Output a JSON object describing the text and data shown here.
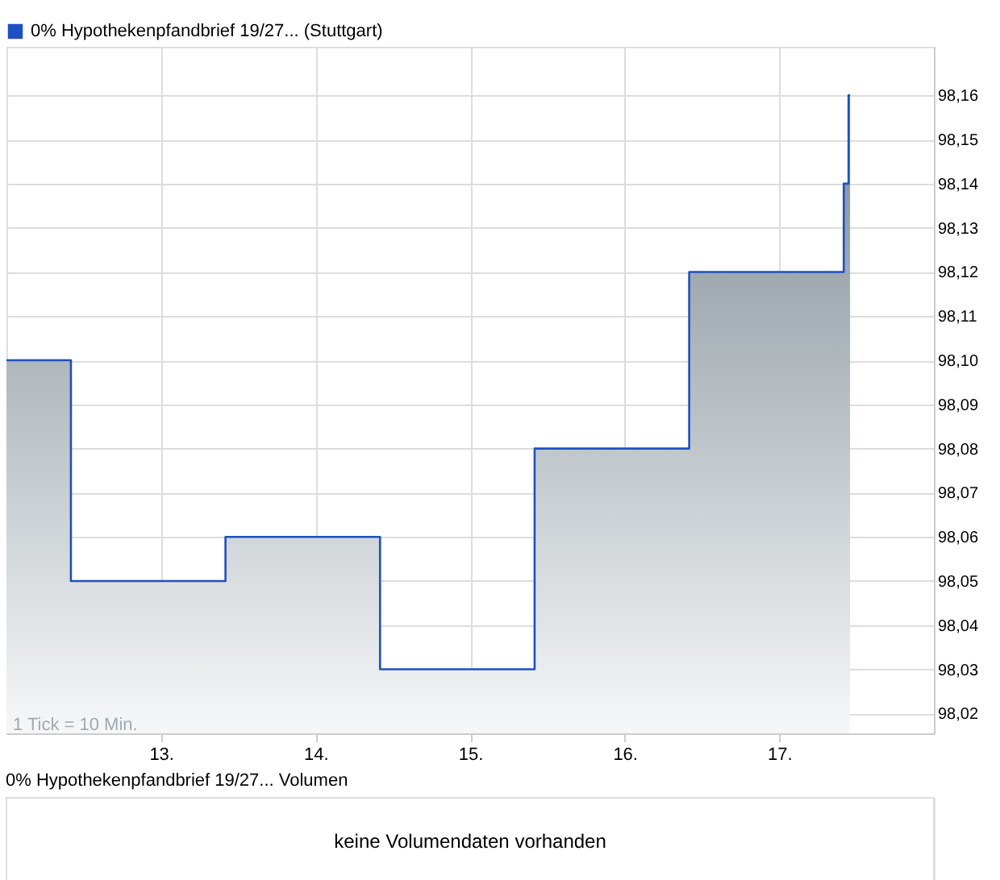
{
  "chart_data": [
    {
      "type": "area",
      "x": [
        12.0,
        12.417,
        12.417,
        13.417,
        13.417,
        14.417,
        14.417,
        15.417,
        15.417,
        16.417,
        16.417,
        17.417,
        17.417,
        17.448,
        17.448,
        17.458
      ],
      "series": [
        {
          "name": "0% Hypothekenpfandbrief 19/27... (Stuttgart)",
          "color": "#1f50c0",
          "values": [
            98.1,
            98.1,
            98.05,
            98.05,
            98.06,
            98.06,
            98.03,
            98.03,
            98.08,
            98.08,
            98.12,
            98.12,
            98.14,
            98.14,
            98.16,
            98.16
          ]
        }
      ],
      "xlim": [
        12.0,
        18.0
      ],
      "xticks": [
        {
          "value": 13,
          "label": "13."
        },
        {
          "value": 14,
          "label": "14."
        },
        {
          "value": 15,
          "label": "15."
        },
        {
          "value": 16,
          "label": "16."
        },
        {
          "value": 17,
          "label": "17."
        }
      ],
      "ylim": [
        98.0155,
        98.171
      ],
      "yticks": [
        {
          "value": 98.02,
          "label": "98,02"
        },
        {
          "value": 98.03,
          "label": "98,03"
        },
        {
          "value": 98.04,
          "label": "98,04"
        },
        {
          "value": 98.05,
          "label": "98,05"
        },
        {
          "value": 98.06,
          "label": "98,06"
        },
        {
          "value": 98.07,
          "label": "98,07"
        },
        {
          "value": 98.08,
          "label": "98,08"
        },
        {
          "value": 98.09,
          "label": "98,09"
        },
        {
          "value": 98.1,
          "label": "98,10"
        },
        {
          "value": 98.11,
          "label": "98,11"
        },
        {
          "value": 98.12,
          "label": "98,12"
        },
        {
          "value": 98.13,
          "label": "98,13"
        },
        {
          "value": 98.14,
          "label": "98,14"
        },
        {
          "value": 98.15,
          "label": "98,15"
        },
        {
          "value": 98.16,
          "label": "98,16"
        }
      ],
      "grid": true,
      "legend": "top left",
      "annotations": [
        "1 Tick = 10 Min."
      ]
    },
    {
      "type": "other",
      "title": "0% Hypothekenpfandbrief 19/27... Volumen",
      "annotations": [
        "keine Volumendaten vorhanden"
      ]
    }
  ]
}
